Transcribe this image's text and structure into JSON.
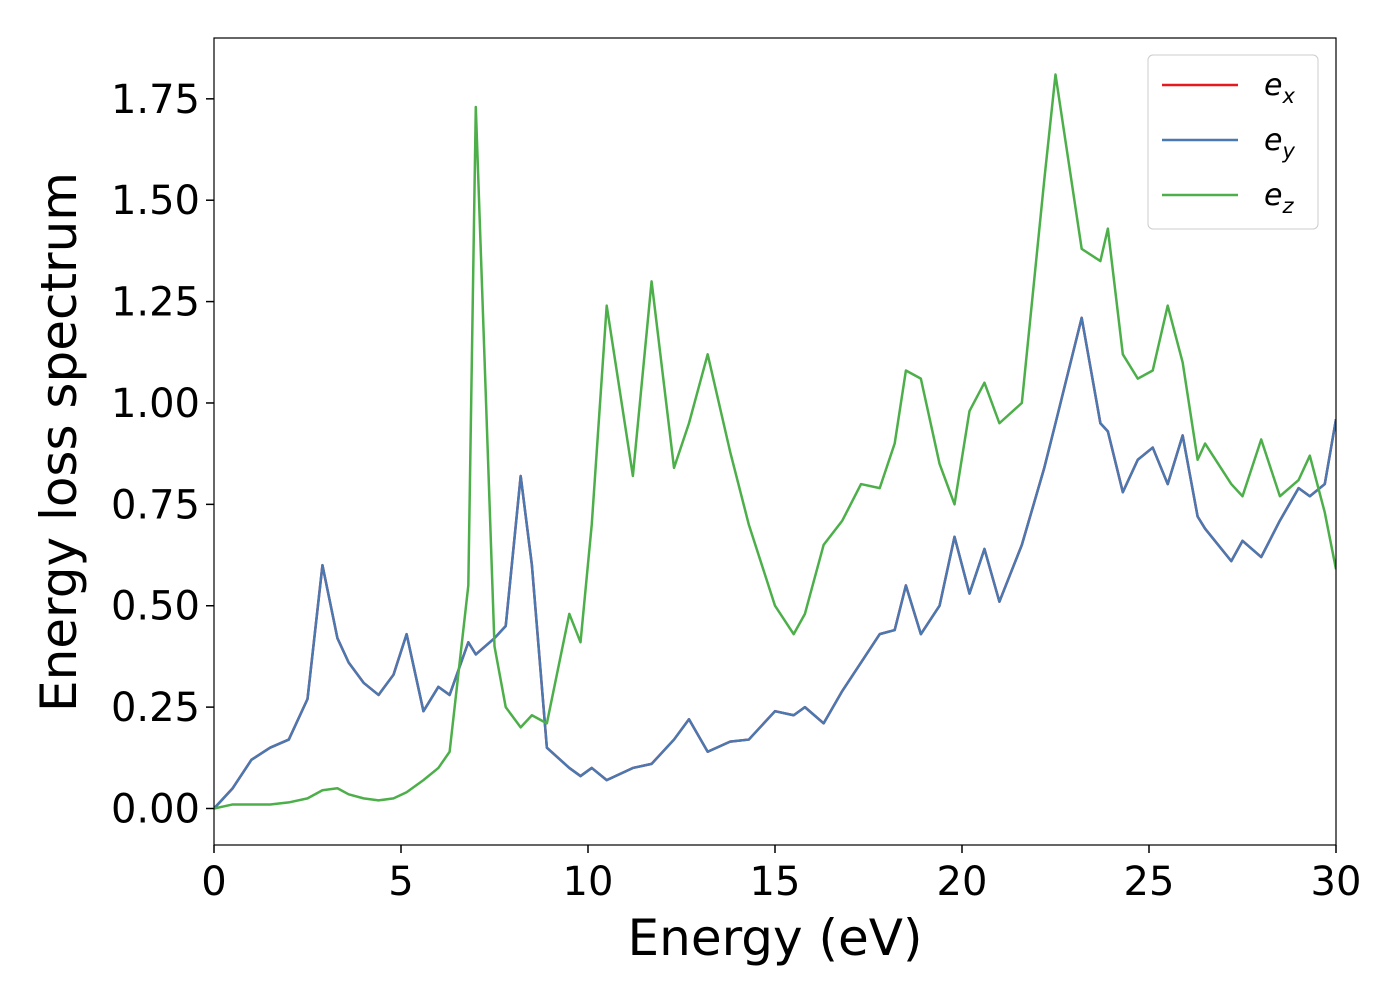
{
  "chart_data": {
    "type": "line",
    "xlabel": "Energy (eV)",
    "ylabel": "Energy loss spectrum",
    "x": [
      0,
      0.5,
      1,
      1.5,
      2,
      2.5,
      2.9,
      3.3,
      3.6,
      4.0,
      4.4,
      4.8,
      5.15,
      5.6,
      6.0,
      6.3,
      6.8,
      7.0,
      7.5,
      7.8,
      8.2,
      8.5,
      8.9,
      9.5,
      9.8,
      10.1,
      10.5,
      11.2,
      11.7,
      12.3,
      12.7,
      13.2,
      13.8,
      14.3,
      15.0,
      15.5,
      15.8,
      16.3,
      16.8,
      17.3,
      17.8,
      18.2,
      18.5,
      18.9,
      19.4,
      19.8,
      20.2,
      20.6,
      21.0,
      21.6,
      22.2,
      22.5,
      23.2,
      23.7,
      23.9,
      24.3,
      24.7,
      25.1,
      25.5,
      25.9,
      26.3,
      26.5,
      27.2,
      27.5,
      28.0,
      28.5,
      29.0,
      29.3,
      29.7,
      30.0
    ],
    "series": [
      {
        "name": "e_x",
        "color": "#e41a1c",
        "values": [
          0.0,
          0.05,
          0.12,
          0.15,
          0.17,
          0.27,
          0.6,
          0.42,
          0.36,
          0.31,
          0.28,
          0.33,
          0.43,
          0.24,
          0.3,
          0.28,
          0.41,
          0.38,
          0.42,
          0.45,
          0.82,
          0.6,
          0.15,
          0.1,
          0.08,
          0.1,
          0.07,
          0.1,
          0.11,
          0.17,
          0.22,
          0.14,
          0.165,
          0.17,
          0.24,
          0.23,
          0.25,
          0.21,
          0.29,
          0.36,
          0.43,
          0.44,
          0.55,
          0.43,
          0.5,
          0.67,
          0.53,
          0.64,
          0.51,
          0.65,
          0.84,
          0.95,
          1.21,
          0.95,
          0.93,
          0.78,
          0.86,
          0.89,
          0.8,
          0.92,
          0.72,
          0.69,
          0.61,
          0.66,
          0.62,
          0.71,
          0.79,
          0.77,
          0.8,
          0.96
        ]
      },
      {
        "name": "e_y",
        "color": "#4a78b0",
        "values": [
          0.0,
          0.05,
          0.12,
          0.15,
          0.17,
          0.27,
          0.6,
          0.42,
          0.36,
          0.31,
          0.28,
          0.33,
          0.43,
          0.24,
          0.3,
          0.28,
          0.41,
          0.38,
          0.42,
          0.45,
          0.82,
          0.6,
          0.15,
          0.1,
          0.08,
          0.1,
          0.07,
          0.1,
          0.11,
          0.17,
          0.22,
          0.14,
          0.165,
          0.17,
          0.24,
          0.23,
          0.25,
          0.21,
          0.29,
          0.36,
          0.43,
          0.44,
          0.55,
          0.43,
          0.5,
          0.67,
          0.53,
          0.64,
          0.51,
          0.65,
          0.84,
          0.95,
          1.21,
          0.95,
          0.93,
          0.78,
          0.86,
          0.89,
          0.8,
          0.92,
          0.72,
          0.69,
          0.61,
          0.66,
          0.62,
          0.71,
          0.79,
          0.77,
          0.8,
          0.96
        ]
      },
      {
        "name": "e_z",
        "color": "#4daf4a",
        "values": [
          0.0,
          0.01,
          0.01,
          0.01,
          0.015,
          0.025,
          0.045,
          0.05,
          0.035,
          0.025,
          0.02,
          0.025,
          0.04,
          0.07,
          0.1,
          0.14,
          0.55,
          1.73,
          0.4,
          0.25,
          0.2,
          0.23,
          0.21,
          0.48,
          0.41,
          0.7,
          1.24,
          0.82,
          1.3,
          0.84,
          0.95,
          1.12,
          0.88,
          0.7,
          0.5,
          0.43,
          0.48,
          0.65,
          0.71,
          0.8,
          0.79,
          0.9,
          1.08,
          1.06,
          0.85,
          0.75,
          0.98,
          1.05,
          0.95,
          1.0,
          1.55,
          1.81,
          1.38,
          1.35,
          1.43,
          1.12,
          1.06,
          1.08,
          1.24,
          1.1,
          0.86,
          0.9,
          0.8,
          0.77,
          0.91,
          0.77,
          0.81,
          0.87,
          0.73,
          0.59
        ]
      }
    ],
    "xlim": [
      0,
      30
    ],
    "xticks": [
      0,
      5,
      10,
      15,
      20,
      25,
      30
    ],
    "ylim": [
      -0.09,
      1.9
    ],
    "yticks": [
      {
        "value": 0,
        "label": "0.00"
      },
      {
        "value": 0.25,
        "label": "0.25"
      },
      {
        "value": 0.5,
        "label": "0.50"
      },
      {
        "value": 0.75,
        "label": "0.75"
      },
      {
        "value": 1.0,
        "label": "1.00"
      },
      {
        "value": 1.25,
        "label": "1.25"
      },
      {
        "value": 1.5,
        "label": "1.50"
      },
      {
        "value": 1.75,
        "label": "1.75"
      }
    ],
    "legend": "upper right",
    "grid": false
  }
}
